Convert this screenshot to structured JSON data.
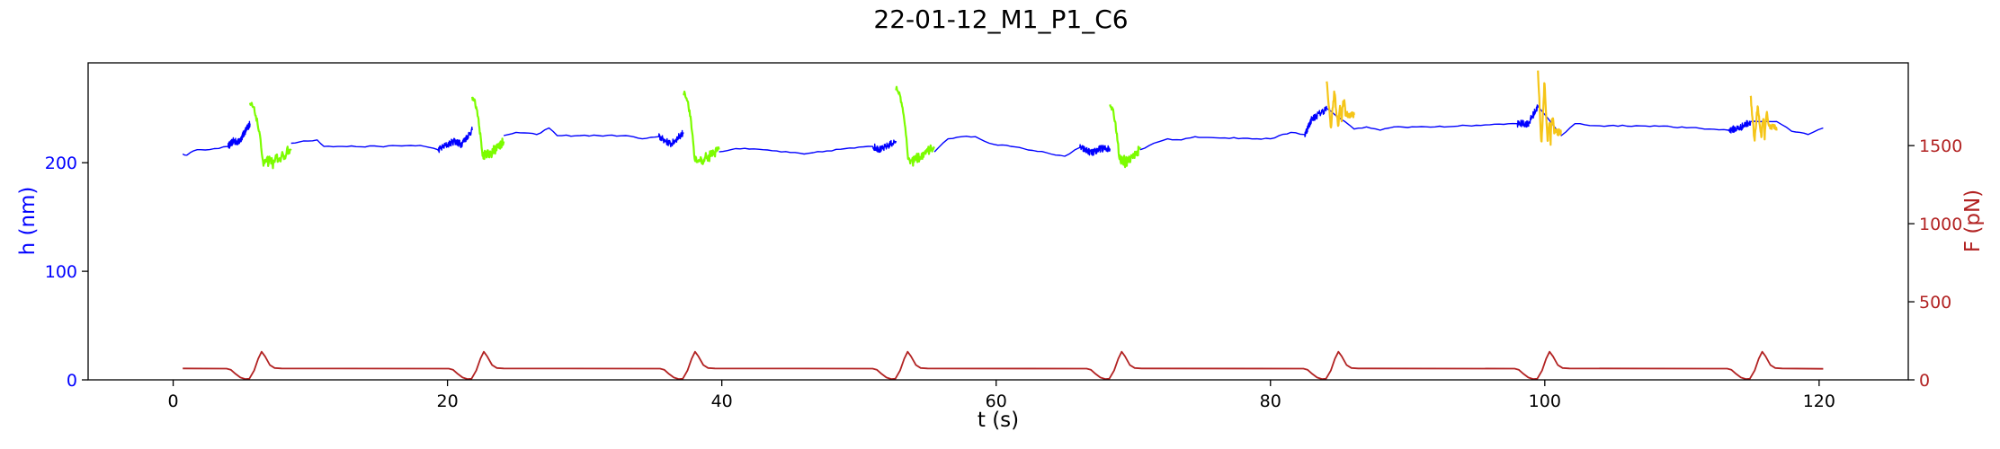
{
  "chart_data": {
    "type": "line",
    "title": "22-01-12_M1_P1_C6",
    "xlabel": "t (s)",
    "ylabel_left": "h (nm)",
    "ylabel_right": "F (pN)",
    "xlim": [
      -6.2,
      126.5
    ],
    "ylim_left": [
      0,
      292
    ],
    "ylim_right": [
      0,
      2030
    ],
    "xticks": [
      0,
      20,
      40,
      60,
      80,
      100,
      120
    ],
    "yticks_left": [
      0,
      100,
      200
    ],
    "yticks_right": [
      0,
      500,
      1000,
      1500
    ],
    "grid": false,
    "legend": "none",
    "colors": {
      "h_axis": "#0000ff",
      "h_base": "#0000ff",
      "h_green": "#7cfc00",
      "h_gold": "#f5c518",
      "force": "#b22222",
      "frame": "#000000"
    },
    "cycles": [
      {
        "start": 5.6,
        "end": 8.6,
        "type": "green",
        "peak": 254,
        "dip": 200
      },
      {
        "start": 21.8,
        "end": 24.1,
        "type": "green",
        "peak": 259,
        "dip": 207
      },
      {
        "start": 37.2,
        "end": 39.8,
        "type": "green",
        "peak": 265,
        "dip": 202
      },
      {
        "start": 52.7,
        "end": 55.5,
        "type": "green",
        "peak": 268,
        "dip": 203
      },
      {
        "start": 68.3,
        "end": 70.5,
        "type": "green",
        "peak": 252,
        "dip": 201
      },
      {
        "start": 84.1,
        "end": 86.1,
        "type": "gold",
        "peak": 275,
        "dip": 232
      },
      {
        "start": 99.5,
        "end": 101.2,
        "type": "gold",
        "peak": 285,
        "dip": 216
      },
      {
        "start": 115.0,
        "end": 116.9,
        "type": "gold",
        "peak": 263,
        "dip": 220
      }
    ],
    "series_h_base": {
      "x": [
        0.7,
        1.0,
        1.5,
        2.0,
        3.0,
        4.0,
        4.4,
        4.8,
        5.2,
        5.6,
        8.6,
        9.5,
        10.5,
        11.0,
        12,
        15,
        18,
        19.3,
        20.5,
        21.0,
        21.8,
        24.1,
        25,
        26.5,
        27.4,
        28,
        31,
        33,
        34.2,
        35.4,
        36.3,
        37.2,
        39.8,
        41,
        43,
        46,
        49,
        51.0,
        51.6,
        52.7,
        55.5,
        56.5,
        57.5,
        58.5,
        59.5,
        62,
        65,
        66.1,
        67,
        67.6,
        68.3,
        70.5,
        71.5,
        72.5,
        73.5,
        74.5,
        76,
        80,
        81.5,
        82.5,
        83.0,
        84.1,
        86.1,
        87,
        88,
        89,
        92,
        96,
        98.0,
        98.8,
        99.5,
        101.2,
        102.2,
        104,
        108,
        112,
        113.4,
        114.2,
        115.0,
        116.9,
        118,
        119.2,
        120.3
      ],
      "y": [
        208,
        207,
        211,
        212,
        213,
        215,
        220,
        219,
        228,
        236,
        218,
        220,
        221,
        215,
        215,
        215,
        216,
        212,
        220,
        217,
        230,
        225,
        228,
        226,
        232,
        225,
        225,
        225,
        222,
        224,
        217,
        228,
        210,
        213,
        212,
        208,
        213,
        215,
        212,
        220,
        210,
        222,
        224,
        224,
        218,
        213,
        206,
        214,
        209,
        213,
        213,
        212,
        218,
        222,
        221,
        224,
        223,
        222,
        228,
        226,
        240,
        250,
        231,
        233,
        230,
        233,
        233,
        235,
        236,
        236,
        252,
        225,
        236,
        234,
        234,
        231,
        230,
        232,
        238,
        238,
        229,
        226,
        232
      ]
    },
    "series_force": {
      "baseline": 73,
      "pre_ramp_low": 5,
      "peak": 180,
      "final_x": 120.3
    }
  }
}
